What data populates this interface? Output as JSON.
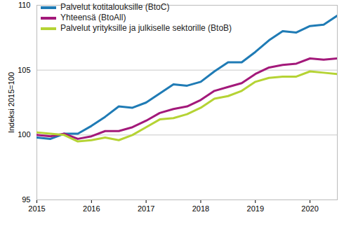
{
  "chart_data": {
    "type": "line",
    "y_label": "Indeksi 2015=100",
    "x": [
      2015,
      2015.25,
      2015.5,
      2015.75,
      2016,
      2016.25,
      2016.5,
      2016.75,
      2017,
      2017.25,
      2017.5,
      2017.75,
      2018,
      2018.25,
      2018.5,
      2018.75,
      2019,
      2019.25,
      2019.5,
      2019.75,
      2020,
      2020.25,
      2020.5
    ],
    "series": [
      {
        "name": "Palvelut kotitalouksille (BtoC)",
        "color": "#1f7bb5",
        "values": [
          99.8,
          99.7,
          100.1,
          100.1,
          100.7,
          101.4,
          102.2,
          102.1,
          102.5,
          103.2,
          103.9,
          103.8,
          104.1,
          104.9,
          105.6,
          105.6,
          106.4,
          107.3,
          108.0,
          107.9,
          108.4,
          108.5,
          109.2
        ]
      },
      {
        "name": "Yhteensä (BtoAll)",
        "color": "#a3197a",
        "values": [
          100.0,
          99.9,
          100.1,
          99.7,
          99.9,
          100.3,
          100.3,
          100.6,
          101.1,
          101.7,
          102.0,
          102.2,
          102.7,
          103.4,
          103.7,
          104.0,
          104.7,
          105.2,
          105.4,
          105.5,
          105.9,
          105.8,
          105.9
        ]
      },
      {
        "name": "Palvelut yrityksille ja julkiselle sektorille (BtoB)",
        "color": "#b5d334",
        "values": [
          100.2,
          100.1,
          100.0,
          99.5,
          99.6,
          99.8,
          99.6,
          100.0,
          100.6,
          101.2,
          101.3,
          101.6,
          102.1,
          102.8,
          103.0,
          103.4,
          104.1,
          104.4,
          104.5,
          104.5,
          104.9,
          104.8,
          104.7
        ]
      }
    ],
    "xlim": [
      2015,
      2020.5
    ],
    "xticks": [
      2015,
      2016,
      2017,
      2018,
      2019,
      2020
    ],
    "ylim": [
      95,
      110
    ],
    "yticks": [
      95,
      100,
      105,
      110
    ],
    "grid": true,
    "legend": "top-left"
  }
}
